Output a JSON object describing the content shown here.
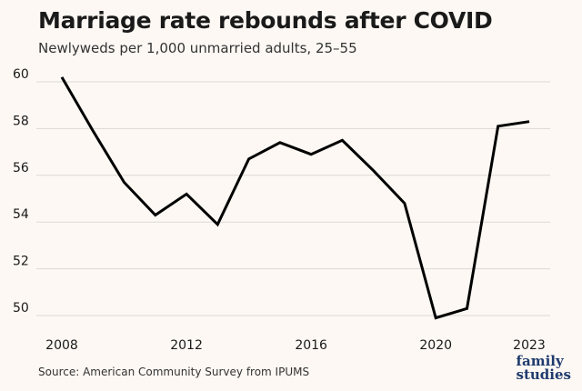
{
  "chart_data": {
    "type": "line",
    "title": "Marriage rate rebounds after COVID",
    "subtitle": "Newlyweds per 1,000 unmarried adults, 25–55",
    "xlabel": "",
    "ylabel": "",
    "x": [
      2008,
      2009,
      2010,
      2011,
      2012,
      2013,
      2014,
      2015,
      2016,
      2017,
      2018,
      2019,
      2020,
      2021,
      2022,
      2023
    ],
    "series": [
      {
        "values": [
          60.2,
          57.9,
          55.7,
          54.3,
          55.2,
          53.9,
          56.7,
          57.4,
          56.9,
          57.5,
          56.2,
          54.8,
          49.9,
          50.3,
          58.1,
          58.3
        ]
      }
    ],
    "xticks": [
      2008,
      2012,
      2016,
      2020,
      2023
    ],
    "yticks": [
      50,
      52,
      54,
      56,
      58,
      60
    ],
    "xlim": [
      2008,
      2023
    ],
    "ylim": [
      50,
      60
    ],
    "grid": true,
    "line_color": "#000000"
  },
  "source": "Source: American Community Survey from IPUMS",
  "logo": {
    "line1": "family",
    "line2": "studies"
  }
}
